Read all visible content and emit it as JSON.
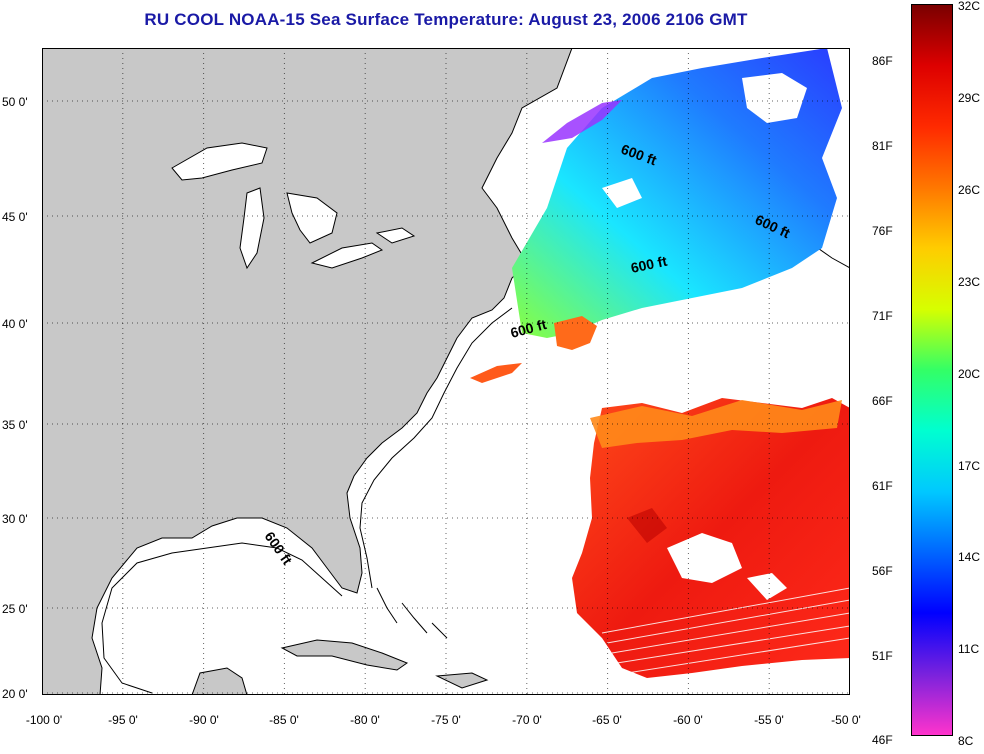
{
  "title": "RU COOL  NOAA-15  Sea Surface Temperature:  August 23, 2006 2106 GMT",
  "map": {
    "lon_range": [
      -100,
      -50
    ],
    "lat_range": [
      20,
      52.5
    ],
    "lat_ticks": [
      "20 0'",
      "25 0'",
      "30 0'",
      "35 0'",
      "40 0'",
      "45 0'",
      "50 0'"
    ],
    "lon_ticks": [
      "-100 0'",
      "-95 0'",
      "-90 0'",
      "-85 0'",
      "-80 0'",
      "-75 0'",
      "-70 0'",
      "-65 0'",
      "-60 0'",
      "-55 0'",
      "-50 0'"
    ],
    "grid": "dotted",
    "land_color": "#c8c8c8",
    "contour_labels": [
      "600 ft",
      "600 ft",
      "600 ft",
      "600 ft",
      "600 ft"
    ]
  },
  "colorbar": {
    "celsius_ticks": [
      "8C",
      "11C",
      "14C",
      "17C",
      "20C",
      "23C",
      "26C",
      "29C",
      "32C"
    ],
    "fahrenheit_ticks": [
      "46F",
      "51F",
      "56F",
      "61F",
      "66F",
      "71F",
      "76F",
      "81F",
      "86F"
    ],
    "stops": [
      "#ff33cc",
      "#7a22dd",
      "#0000ff",
      "#0066ff",
      "#00c8ff",
      "#00ffd0",
      "#33ff66",
      "#d6ff00",
      "#ffcc00",
      "#ff7700",
      "#ff2a00",
      "#dd0000",
      "#7a0000"
    ]
  }
}
